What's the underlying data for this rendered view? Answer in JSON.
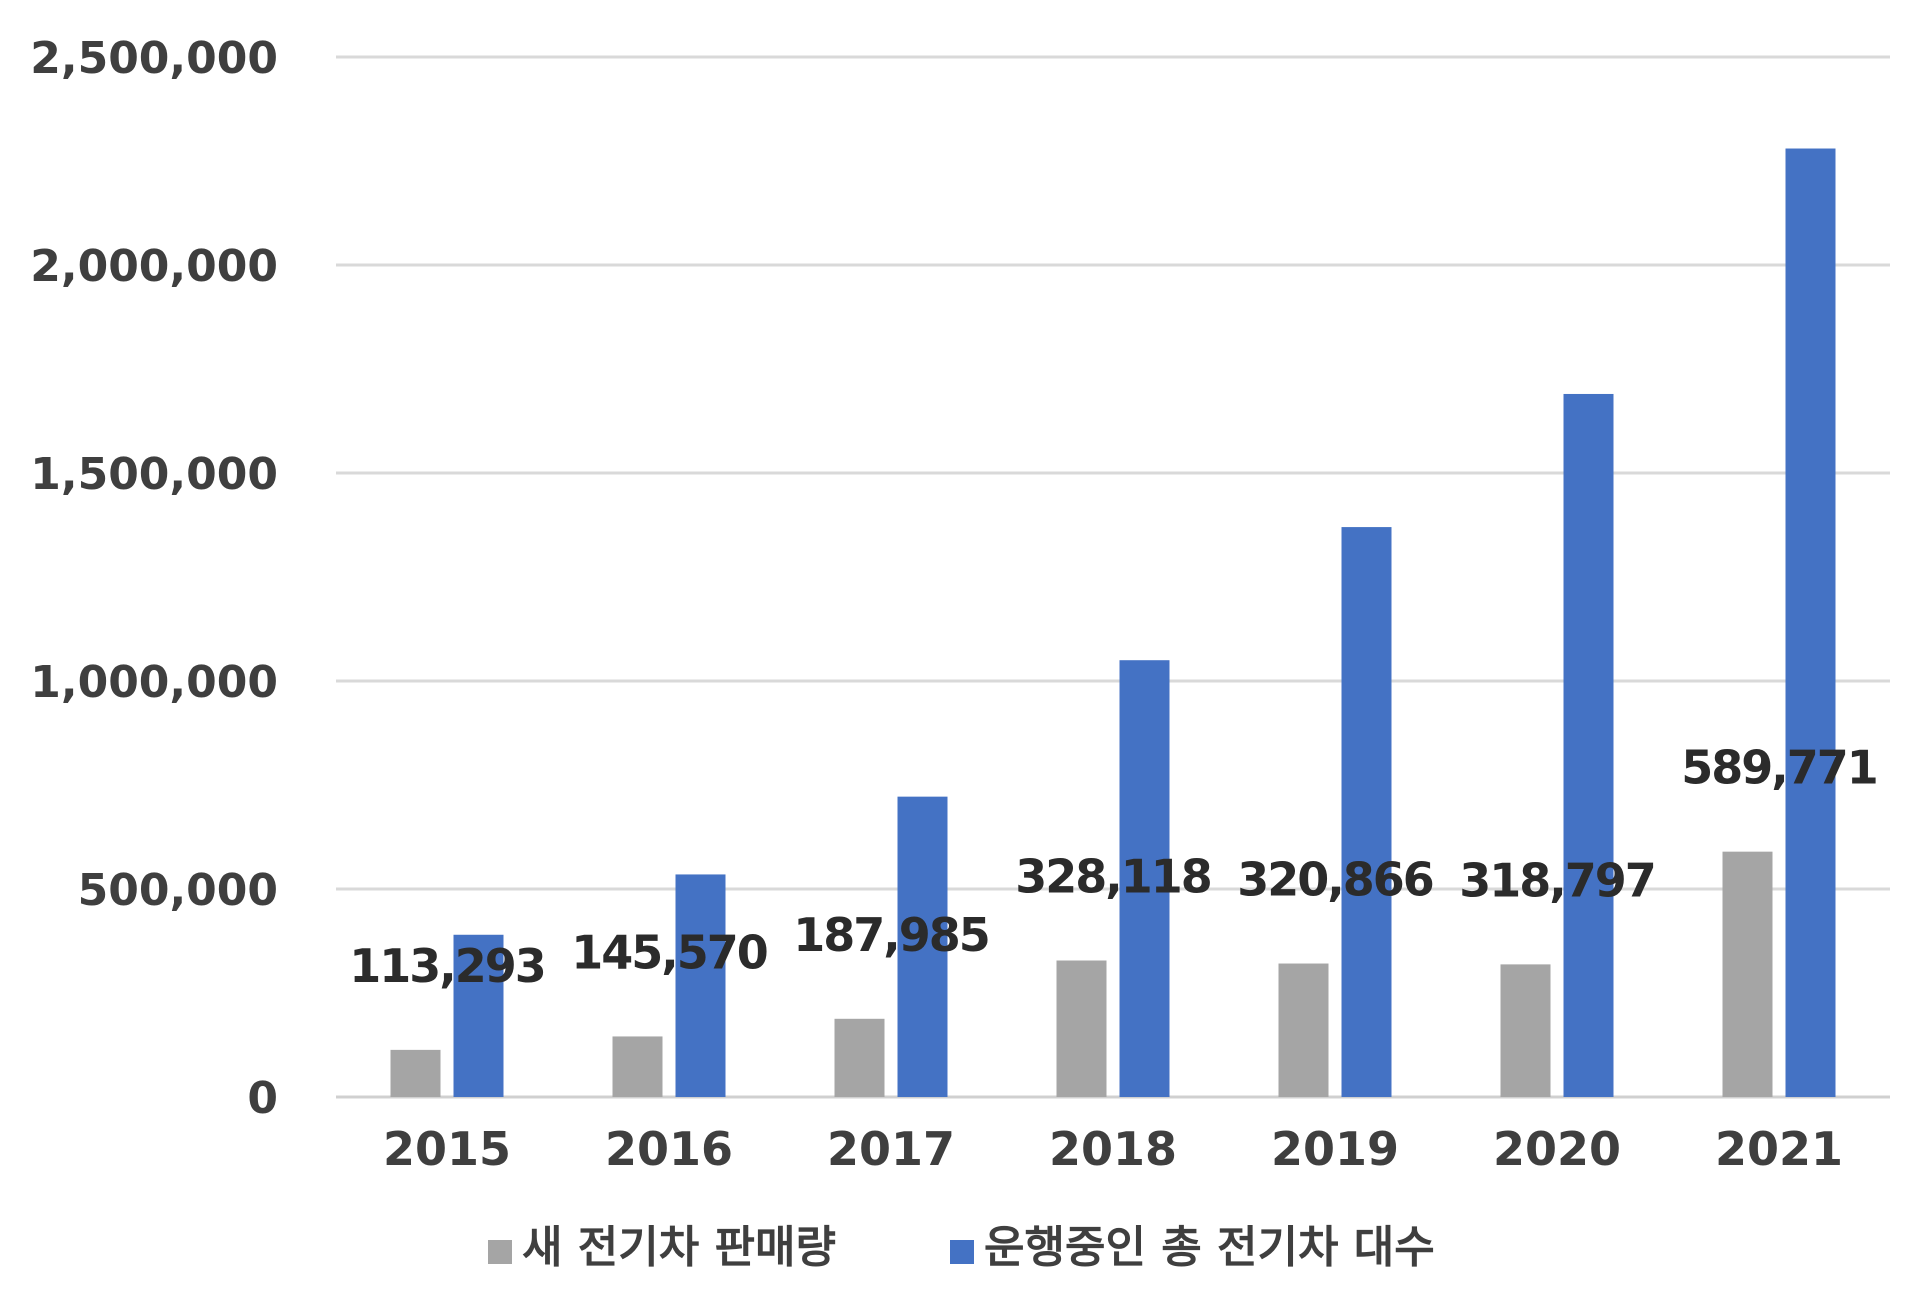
{
  "chart_data": {
    "type": "bar",
    "title": "",
    "xlabel": "",
    "ylabel": "",
    "categories": [
      "2015",
      "2016",
      "2017",
      "2018",
      "2019",
      "2020",
      "2021"
    ],
    "ylim": [
      0,
      2500000
    ],
    "yticks": [
      0,
      500000,
      1000000,
      1500000,
      2000000,
      2500000
    ],
    "ytick_labels": [
      "0",
      "500,000",
      "1,000,000",
      "1,500,000",
      "2,000,000",
      "2,500,000"
    ],
    "grid": true,
    "legend_position": "bottom",
    "series": [
      {
        "name": "새 전기차 판매량",
        "color": "#a5a5a5",
        "values": [
          113293,
          145570,
          187985,
          328118,
          320866,
          318797,
          589771
        ],
        "data_labels": [
          "113,293",
          "145,570",
          "187,985",
          "328,118",
          "320,866",
          "318,797",
          "589,771"
        ]
      },
      {
        "name": "운행중인 총 전기차 대수",
        "color": "#4472c4",
        "values": [
          390000,
          535000,
          722000,
          1050000,
          1370000,
          1690000,
          2280000
        ]
      }
    ]
  }
}
